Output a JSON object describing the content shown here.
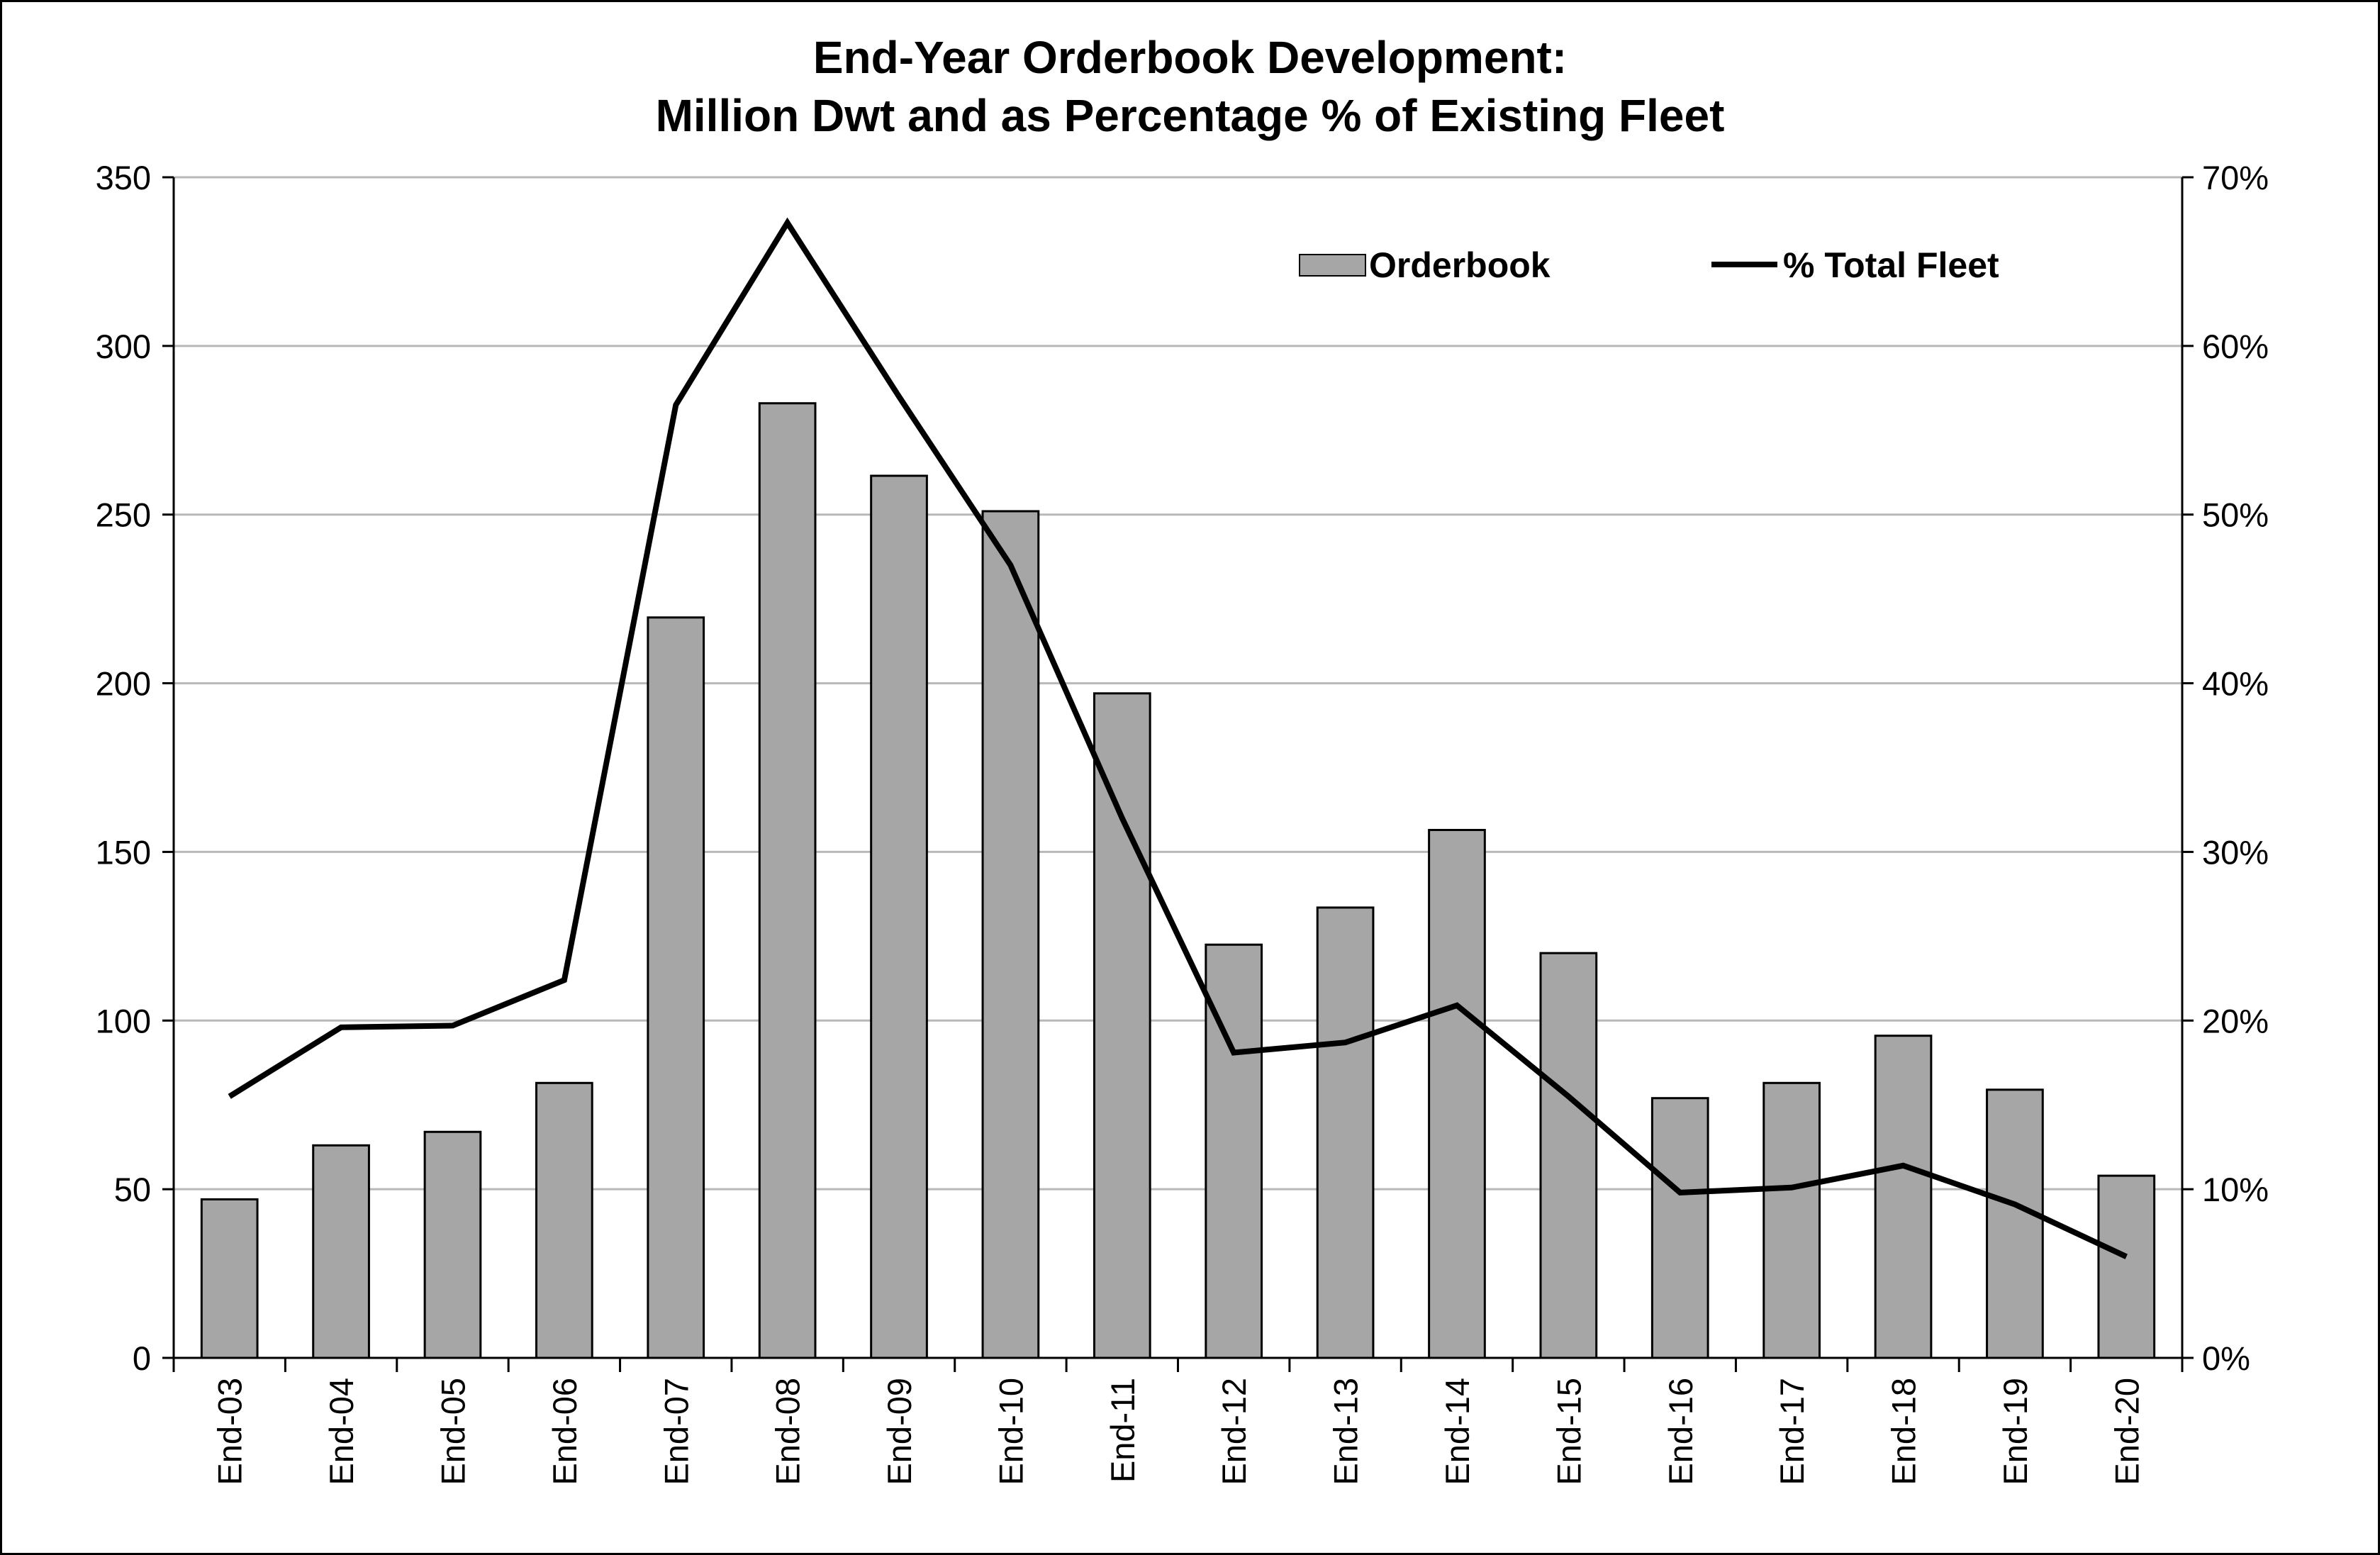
{
  "chart_data": {
    "type": "bar",
    "title": "End-Year Orderbook Development:",
    "subtitle": "Million Dwt and as Percentage % of Existing Fleet",
    "categories": [
      "End-03",
      "End-04",
      "End-05",
      "End-06",
      "End-07",
      "End-08",
      "End-09",
      "End-10",
      "End-11",
      "End-12",
      "End-13",
      "End-14",
      "End-15",
      "End-16",
      "End-17",
      "End-18",
      "End-19",
      "End-20"
    ],
    "series": [
      {
        "name": "Orderbook",
        "kind": "bar",
        "axis": "left",
        "color": "#a6a6a6",
        "values": [
          47,
          63,
          67,
          81.5,
          219.5,
          283,
          261.5,
          251,
          197,
          122.5,
          133.5,
          156.5,
          120,
          77,
          81.5,
          95.5,
          79.5,
          54
        ]
      },
      {
        "name": "% Total Fleet",
        "kind": "line",
        "axis": "right",
        "color": "#000000",
        "values": [
          15.5,
          19.6,
          19.7,
          22.4,
          56.5,
          67.3,
          57.0,
          47.0,
          32.0,
          18.1,
          18.7,
          20.9,
          15.5,
          9.8,
          10.1,
          11.4,
          9.1,
          6.0
        ]
      }
    ],
    "y_left": {
      "min": 0,
      "max": 350,
      "ticks": [
        "0",
        "50",
        "100",
        "150",
        "200",
        "250",
        "300",
        "350"
      ]
    },
    "y_right": {
      "min": 0,
      "max": 70,
      "ticks": [
        "0%",
        "10%",
        "20%",
        "30%",
        "40%",
        "50%",
        "60%",
        "70%"
      ]
    },
    "grid": true,
    "legend_position": "top-right"
  }
}
